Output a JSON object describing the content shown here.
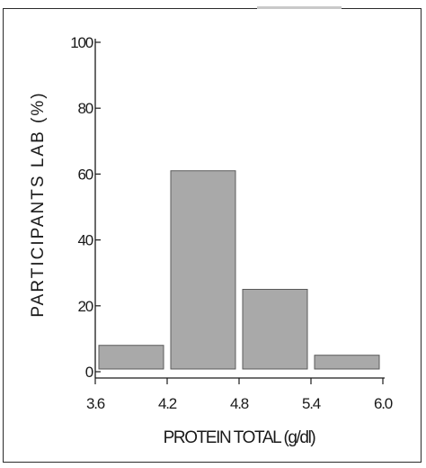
{
  "chart_data": {
    "type": "bar",
    "title": "",
    "xlabel": "PROTEIN TOTAL (g/dl)",
    "ylabel": "PARTICIPANTS LAB (%)",
    "bin_edges": [
      3.6,
      4.2,
      4.8,
      5.4,
      6.0
    ],
    "x_tick_labels": [
      "3.6",
      "4.2",
      "4.8",
      "5.4",
      "6.0"
    ],
    "values": [
      8,
      61,
      25,
      5
    ],
    "ylim": [
      0,
      100
    ],
    "y_ticks": [
      0,
      20,
      40,
      60,
      80,
      100
    ],
    "y_tick_labels": [
      "0",
      "20",
      "40",
      "60",
      "80",
      "100"
    ],
    "grid": false,
    "bar_color": "#a9a9a9"
  }
}
